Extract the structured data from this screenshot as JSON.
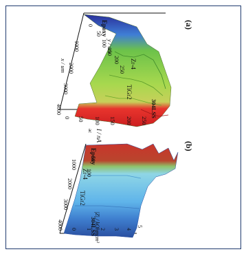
{
  "chart_data": [
    {
      "type": "surface",
      "panel": "(a)",
      "x_axis": {
        "label": "x / um",
        "ticks": [
          "1000",
          "2000",
          "3000",
          "4000"
        ]
      },
      "y_axis": {
        "label": "y / um",
        "ticks": [
          "0",
          "50",
          "100",
          "150",
          "200",
          "250"
        ]
      },
      "z_axis": {
        "label": "I / nA",
        "sub": "ac",
        "ticks": [
          "0",
          "50",
          "100",
          "150",
          "200",
          "250"
        ]
      },
      "regions": [
        {
          "name": "Epoxy",
          "color": "#3b3fa8",
          "z_level": 0
        },
        {
          "name": "Zr-4",
          "color": "#7fc84a",
          "z_level": 120
        },
        {
          "name": "TiGr2",
          "color": "#a6d94a",
          "z_level": 150
        },
        {
          "name": "304LSS",
          "color": "#e8342d",
          "z_level": 240
        }
      ]
    },
    {
      "type": "surface",
      "panel": "(b)",
      "x_axis": {
        "label": "x / um",
        "ticks": [
          "1000",
          "2000",
          "3000",
          "4000"
        ]
      },
      "y_axis": {
        "label": "y / um",
        "ticks": [
          "50",
          "100"
        ]
      },
      "z_axis": {
        "label": "|Z| / kOhmcm²",
        "ticks": [
          "0",
          "1",
          "2",
          "3",
          "4",
          "5"
        ]
      },
      "regions": [
        {
          "name": "Epoxy",
          "color": "#c0342a",
          "z_level": 4.5
        },
        {
          "name": "Zr-4",
          "color": "#7fd0e0",
          "z_level": 2.5
        },
        {
          "name": "TiGr2",
          "color": "#6ab8e8",
          "z_level": 1.2
        },
        {
          "name": "304LSS",
          "color": "#2f5fb0",
          "z_level": 0.4
        }
      ]
    }
  ]
}
